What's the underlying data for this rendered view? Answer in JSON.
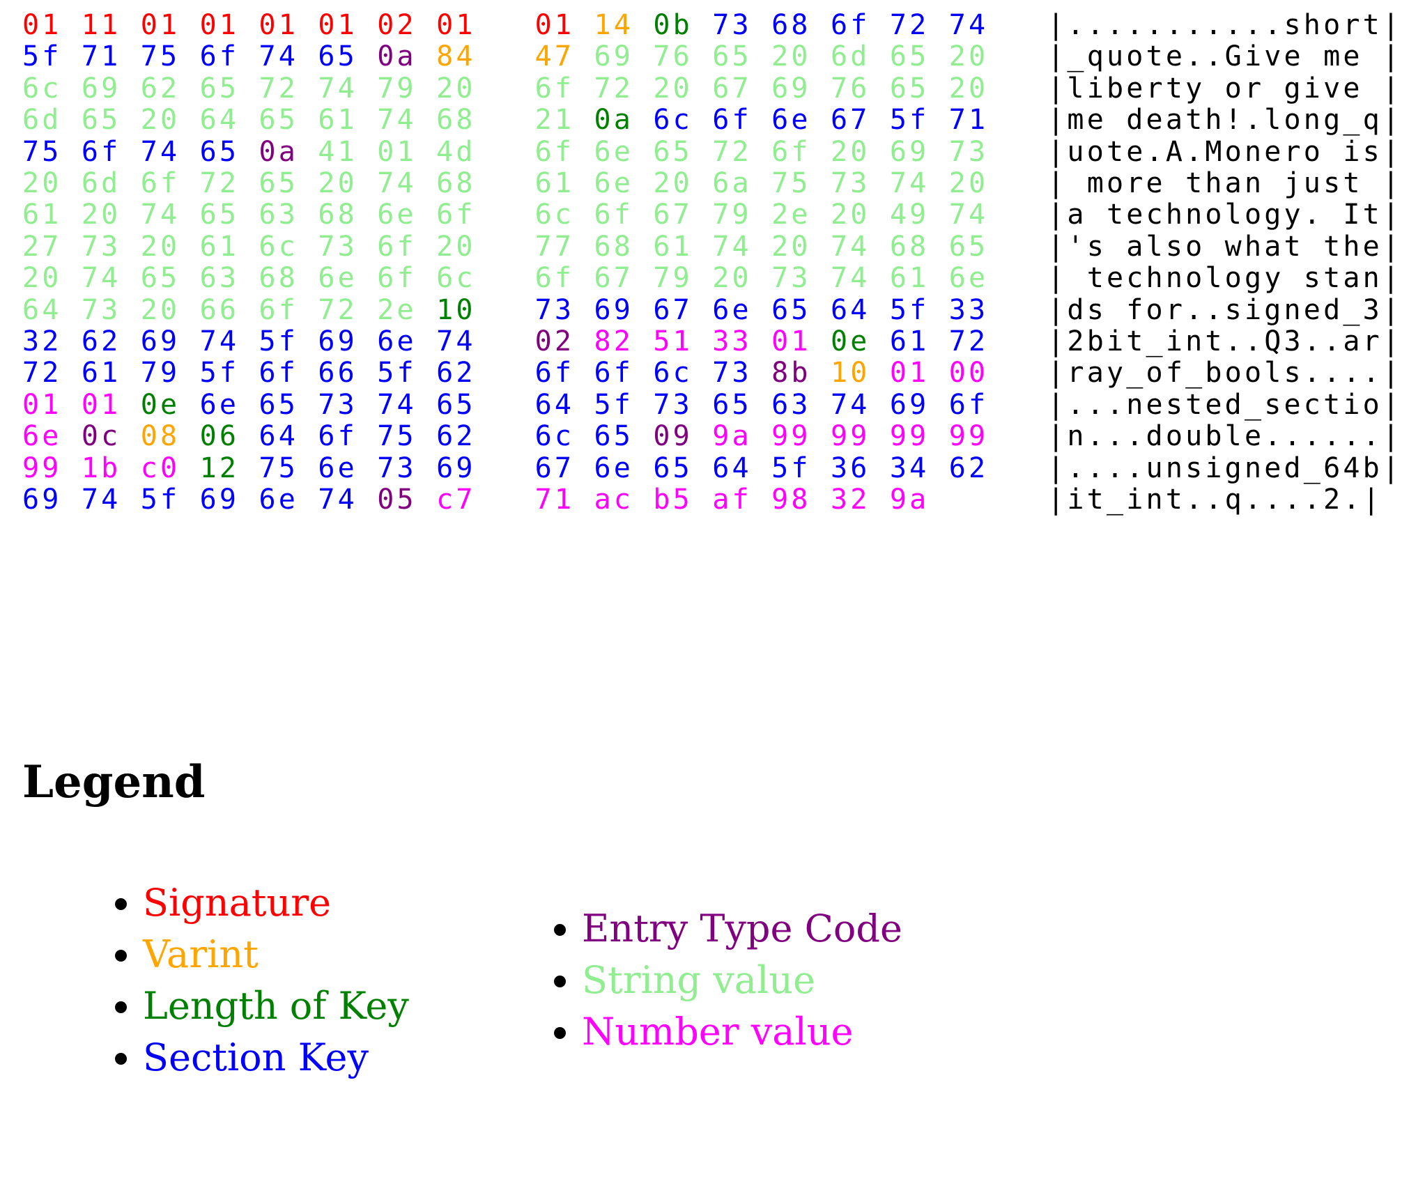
{
  "colors": {
    "sig": "#ff0000",
    "var": "#ffa500",
    "len": "#008000",
    "key": "#0000ff",
    "typ": "#800080",
    "str": "#90ee90",
    "num": "#ff00ff",
    "ascii": "#000000"
  },
  "hexdump": {
    "rows": [
      {
        "bytes": [
          [
            "01",
            "sig"
          ],
          [
            "11",
            "sig"
          ],
          [
            "01",
            "sig"
          ],
          [
            "01",
            "sig"
          ],
          [
            "01",
            "sig"
          ],
          [
            "01",
            "sig"
          ],
          [
            "02",
            "sig"
          ],
          [
            "01",
            "sig"
          ],
          [
            "01",
            "sig"
          ],
          [
            "14",
            "var"
          ],
          [
            "0b",
            "len"
          ],
          [
            "73",
            "key"
          ],
          [
            "68",
            "key"
          ],
          [
            "6f",
            "key"
          ],
          [
            "72",
            "key"
          ],
          [
            "74",
            "key"
          ]
        ],
        "ascii": "|...........short|"
      },
      {
        "bytes": [
          [
            "5f",
            "key"
          ],
          [
            "71",
            "key"
          ],
          [
            "75",
            "key"
          ],
          [
            "6f",
            "key"
          ],
          [
            "74",
            "key"
          ],
          [
            "65",
            "key"
          ],
          [
            "0a",
            "typ"
          ],
          [
            "84",
            "var"
          ],
          [
            "47",
            "var"
          ],
          [
            "69",
            "str"
          ],
          [
            "76",
            "str"
          ],
          [
            "65",
            "str"
          ],
          [
            "20",
            "str"
          ],
          [
            "6d",
            "str"
          ],
          [
            "65",
            "str"
          ],
          [
            "20",
            "str"
          ]
        ],
        "ascii": "|_quote..Give me |"
      },
      {
        "bytes": [
          [
            "6c",
            "str"
          ],
          [
            "69",
            "str"
          ],
          [
            "62",
            "str"
          ],
          [
            "65",
            "str"
          ],
          [
            "72",
            "str"
          ],
          [
            "74",
            "str"
          ],
          [
            "79",
            "str"
          ],
          [
            "20",
            "str"
          ],
          [
            "6f",
            "str"
          ],
          [
            "72",
            "str"
          ],
          [
            "20",
            "str"
          ],
          [
            "67",
            "str"
          ],
          [
            "69",
            "str"
          ],
          [
            "76",
            "str"
          ],
          [
            "65",
            "str"
          ],
          [
            "20",
            "str"
          ]
        ],
        "ascii": "|liberty or give |"
      },
      {
        "bytes": [
          [
            "6d",
            "str"
          ],
          [
            "65",
            "str"
          ],
          [
            "20",
            "str"
          ],
          [
            "64",
            "str"
          ],
          [
            "65",
            "str"
          ],
          [
            "61",
            "str"
          ],
          [
            "74",
            "str"
          ],
          [
            "68",
            "str"
          ],
          [
            "21",
            "str"
          ],
          [
            "0a",
            "len"
          ],
          [
            "6c",
            "key"
          ],
          [
            "6f",
            "key"
          ],
          [
            "6e",
            "key"
          ],
          [
            "67",
            "key"
          ],
          [
            "5f",
            "key"
          ],
          [
            "71",
            "key"
          ]
        ],
        "ascii": "|me death!.long_q|"
      },
      {
        "bytes": [
          [
            "75",
            "key"
          ],
          [
            "6f",
            "key"
          ],
          [
            "74",
            "key"
          ],
          [
            "65",
            "key"
          ],
          [
            "0a",
            "typ"
          ],
          [
            "41",
            "str"
          ],
          [
            "01",
            "str"
          ],
          [
            "4d",
            "str"
          ],
          [
            "6f",
            "str"
          ],
          [
            "6e",
            "str"
          ],
          [
            "65",
            "str"
          ],
          [
            "72",
            "str"
          ],
          [
            "6f",
            "str"
          ],
          [
            "20",
            "str"
          ],
          [
            "69",
            "str"
          ],
          [
            "73",
            "str"
          ]
        ],
        "ascii": "|uote.A.Monero is|"
      },
      {
        "bytes": [
          [
            "20",
            "str"
          ],
          [
            "6d",
            "str"
          ],
          [
            "6f",
            "str"
          ],
          [
            "72",
            "str"
          ],
          [
            "65",
            "str"
          ],
          [
            "20",
            "str"
          ],
          [
            "74",
            "str"
          ],
          [
            "68",
            "str"
          ],
          [
            "61",
            "str"
          ],
          [
            "6e",
            "str"
          ],
          [
            "20",
            "str"
          ],
          [
            "6a",
            "str"
          ],
          [
            "75",
            "str"
          ],
          [
            "73",
            "str"
          ],
          [
            "74",
            "str"
          ],
          [
            "20",
            "str"
          ]
        ],
        "ascii": "| more than just |"
      },
      {
        "bytes": [
          [
            "61",
            "str"
          ],
          [
            "20",
            "str"
          ],
          [
            "74",
            "str"
          ],
          [
            "65",
            "str"
          ],
          [
            "63",
            "str"
          ],
          [
            "68",
            "str"
          ],
          [
            "6e",
            "str"
          ],
          [
            "6f",
            "str"
          ],
          [
            "6c",
            "str"
          ],
          [
            "6f",
            "str"
          ],
          [
            "67",
            "str"
          ],
          [
            "79",
            "str"
          ],
          [
            "2e",
            "str"
          ],
          [
            "20",
            "str"
          ],
          [
            "49",
            "str"
          ],
          [
            "74",
            "str"
          ]
        ],
        "ascii": "|a technology. It|"
      },
      {
        "bytes": [
          [
            "27",
            "str"
          ],
          [
            "73",
            "str"
          ],
          [
            "20",
            "str"
          ],
          [
            "61",
            "str"
          ],
          [
            "6c",
            "str"
          ],
          [
            "73",
            "str"
          ],
          [
            "6f",
            "str"
          ],
          [
            "20",
            "str"
          ],
          [
            "77",
            "str"
          ],
          [
            "68",
            "str"
          ],
          [
            "61",
            "str"
          ],
          [
            "74",
            "str"
          ],
          [
            "20",
            "str"
          ],
          [
            "74",
            "str"
          ],
          [
            "68",
            "str"
          ],
          [
            "65",
            "str"
          ]
        ],
        "ascii": "|'s also what the|"
      },
      {
        "bytes": [
          [
            "20",
            "str"
          ],
          [
            "74",
            "str"
          ],
          [
            "65",
            "str"
          ],
          [
            "63",
            "str"
          ],
          [
            "68",
            "str"
          ],
          [
            "6e",
            "str"
          ],
          [
            "6f",
            "str"
          ],
          [
            "6c",
            "str"
          ],
          [
            "6f",
            "str"
          ],
          [
            "67",
            "str"
          ],
          [
            "79",
            "str"
          ],
          [
            "20",
            "str"
          ],
          [
            "73",
            "str"
          ],
          [
            "74",
            "str"
          ],
          [
            "61",
            "str"
          ],
          [
            "6e",
            "str"
          ]
        ],
        "ascii": "| technology stan|"
      },
      {
        "bytes": [
          [
            "64",
            "str"
          ],
          [
            "73",
            "str"
          ],
          [
            "20",
            "str"
          ],
          [
            "66",
            "str"
          ],
          [
            "6f",
            "str"
          ],
          [
            "72",
            "str"
          ],
          [
            "2e",
            "str"
          ],
          [
            "10",
            "len"
          ],
          [
            "73",
            "key"
          ],
          [
            "69",
            "key"
          ],
          [
            "67",
            "key"
          ],
          [
            "6e",
            "key"
          ],
          [
            "65",
            "key"
          ],
          [
            "64",
            "key"
          ],
          [
            "5f",
            "key"
          ],
          [
            "33",
            "key"
          ]
        ],
        "ascii": "|ds for..signed_3|"
      },
      {
        "bytes": [
          [
            "32",
            "key"
          ],
          [
            "62",
            "key"
          ],
          [
            "69",
            "key"
          ],
          [
            "74",
            "key"
          ],
          [
            "5f",
            "key"
          ],
          [
            "69",
            "key"
          ],
          [
            "6e",
            "key"
          ],
          [
            "74",
            "key"
          ],
          [
            "02",
            "typ"
          ],
          [
            "82",
            "num"
          ],
          [
            "51",
            "num"
          ],
          [
            "33",
            "num"
          ],
          [
            "01",
            "num"
          ],
          [
            "0e",
            "len"
          ],
          [
            "61",
            "key"
          ],
          [
            "72",
            "key"
          ]
        ],
        "ascii": "|2bit_int..Q3..ar|"
      },
      {
        "bytes": [
          [
            "72",
            "key"
          ],
          [
            "61",
            "key"
          ],
          [
            "79",
            "key"
          ],
          [
            "5f",
            "key"
          ],
          [
            "6f",
            "key"
          ],
          [
            "66",
            "key"
          ],
          [
            "5f",
            "key"
          ],
          [
            "62",
            "key"
          ],
          [
            "6f",
            "key"
          ],
          [
            "6f",
            "key"
          ],
          [
            "6c",
            "key"
          ],
          [
            "73",
            "key"
          ],
          [
            "8b",
            "typ"
          ],
          [
            "10",
            "var"
          ],
          [
            "01",
            "num"
          ],
          [
            "00",
            "num"
          ]
        ],
        "ascii": "|ray_of_bools....|"
      },
      {
        "bytes": [
          [
            "01",
            "num"
          ],
          [
            "01",
            "num"
          ],
          [
            "0e",
            "len"
          ],
          [
            "6e",
            "key"
          ],
          [
            "65",
            "key"
          ],
          [
            "73",
            "key"
          ],
          [
            "74",
            "key"
          ],
          [
            "65",
            "key"
          ],
          [
            "64",
            "key"
          ],
          [
            "5f",
            "key"
          ],
          [
            "73",
            "key"
          ],
          [
            "65",
            "key"
          ],
          [
            "63",
            "key"
          ],
          [
            "74",
            "key"
          ],
          [
            "69",
            "key"
          ],
          [
            "6f",
            "key"
          ]
        ],
        "ascii": "|...nested_sectio|"
      },
      {
        "bytes": [
          [
            "6e",
            "num"
          ],
          [
            "0c",
            "typ"
          ],
          [
            "08",
            "var"
          ],
          [
            "06",
            "len"
          ],
          [
            "64",
            "key"
          ],
          [
            "6f",
            "key"
          ],
          [
            "75",
            "key"
          ],
          [
            "62",
            "key"
          ],
          [
            "6c",
            "key"
          ],
          [
            "65",
            "key"
          ],
          [
            "09",
            "typ"
          ],
          [
            "9a",
            "num"
          ],
          [
            "99",
            "num"
          ],
          [
            "99",
            "num"
          ],
          [
            "99",
            "num"
          ],
          [
            "99",
            "num"
          ]
        ],
        "ascii": "|n...double......|"
      },
      {
        "bytes": [
          [
            "99",
            "num"
          ],
          [
            "1b",
            "num"
          ],
          [
            "c0",
            "num"
          ],
          [
            "12",
            "len"
          ],
          [
            "75",
            "key"
          ],
          [
            "6e",
            "key"
          ],
          [
            "73",
            "key"
          ],
          [
            "69",
            "key"
          ],
          [
            "67",
            "key"
          ],
          [
            "6e",
            "key"
          ],
          [
            "65",
            "key"
          ],
          [
            "64",
            "key"
          ],
          [
            "5f",
            "key"
          ],
          [
            "36",
            "key"
          ],
          [
            "34",
            "key"
          ],
          [
            "62",
            "key"
          ]
        ],
        "ascii": "|....unsigned_64b|"
      },
      {
        "bytes": [
          [
            "69",
            "key"
          ],
          [
            "74",
            "key"
          ],
          [
            "5f",
            "key"
          ],
          [
            "69",
            "key"
          ],
          [
            "6e",
            "key"
          ],
          [
            "74",
            "key"
          ],
          [
            "05",
            "typ"
          ],
          [
            "c7",
            "num"
          ],
          [
            "71",
            "num"
          ],
          [
            "ac",
            "num"
          ],
          [
            "b5",
            "num"
          ],
          [
            "af",
            "num"
          ],
          [
            "98",
            "num"
          ],
          [
            "32",
            "num"
          ],
          [
            "9a",
            "num"
          ]
        ],
        "ascii": "|it_int..q....2.|"
      }
    ]
  },
  "legend": {
    "title": "Legend",
    "left_items": [
      {
        "label": "Signature",
        "color": "sig"
      },
      {
        "label": "Varint",
        "color": "var"
      },
      {
        "label": "Length of Key",
        "color": "len"
      },
      {
        "label": "Section Key",
        "color": "key"
      }
    ],
    "right_items": [
      {
        "label": "Entry Type Code",
        "color": "typ"
      },
      {
        "label": "String value",
        "color": "str"
      },
      {
        "label": "Number value",
        "color": "num"
      }
    ]
  }
}
